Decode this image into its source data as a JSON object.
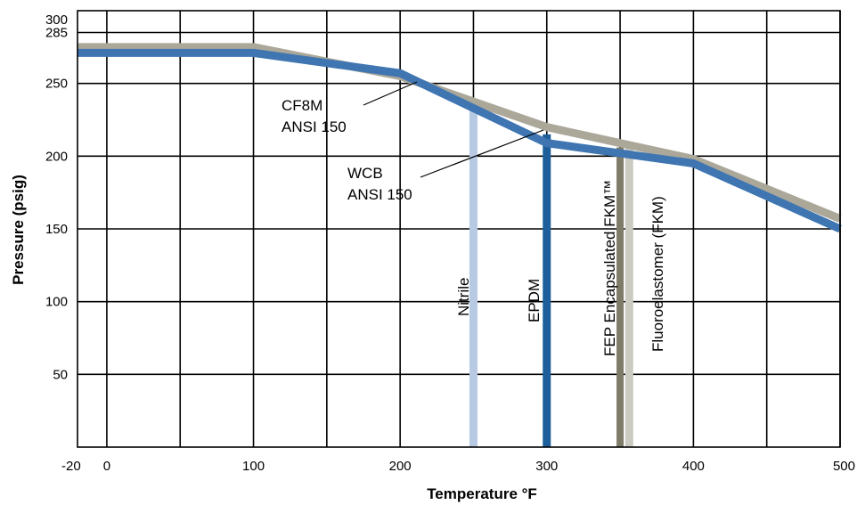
{
  "chart_data": {
    "type": "line",
    "xlabel": "Temperature °F",
    "ylabel": "Pressure (psig)",
    "xlim": [
      -20,
      500
    ],
    "ylim": [
      0,
      300
    ],
    "x_ticks": [
      -20,
      0,
      100,
      200,
      300,
      400,
      500
    ],
    "y_ticks": [
      50,
      100,
      150,
      200,
      250,
      285,
      300
    ],
    "x_gridlines": [
      0,
      50,
      100,
      150,
      200,
      250,
      300,
      350,
      400,
      450,
      500
    ],
    "y_gridlines": [
      50,
      100,
      150,
      200,
      250,
      285
    ],
    "grid": true,
    "series": [
      {
        "name": "CF8M ANSI 150",
        "color": "#aba89a",
        "x": [
          -20,
          100,
          200,
          300,
          400,
          500
        ],
        "y": [
          275,
          275,
          255,
          220,
          198,
          157
        ]
      },
      {
        "name": "WCB ANSI 150",
        "color": "#3f75b1",
        "x": [
          -20,
          100,
          150,
          200,
          250,
          300,
          350,
          400,
          500
        ],
        "y": [
          271,
          271,
          264,
          257,
          233,
          209,
          202,
          195,
          150
        ]
      }
    ],
    "limits": [
      {
        "name": "Nitrile",
        "x": 250,
        "color": "#b8c9e3"
      },
      {
        "name": "EPDM",
        "x": 300,
        "color": "#1d5f9a"
      },
      {
        "name": "FEP Encapsulated FKM™",
        "x": 350,
        "color": "#7e7c68"
      },
      {
        "name": "Fluoroelastomer (FKM)",
        "x": 355,
        "color": "#cccbc2"
      }
    ],
    "annotations": [
      {
        "lines": [
          "CF8M",
          "ANSI 150"
        ],
        "series": "CF8M ANSI 150"
      },
      {
        "lines": [
          "WCB",
          "ANSI 150"
        ],
        "series": "WCB ANSI 150"
      }
    ]
  }
}
